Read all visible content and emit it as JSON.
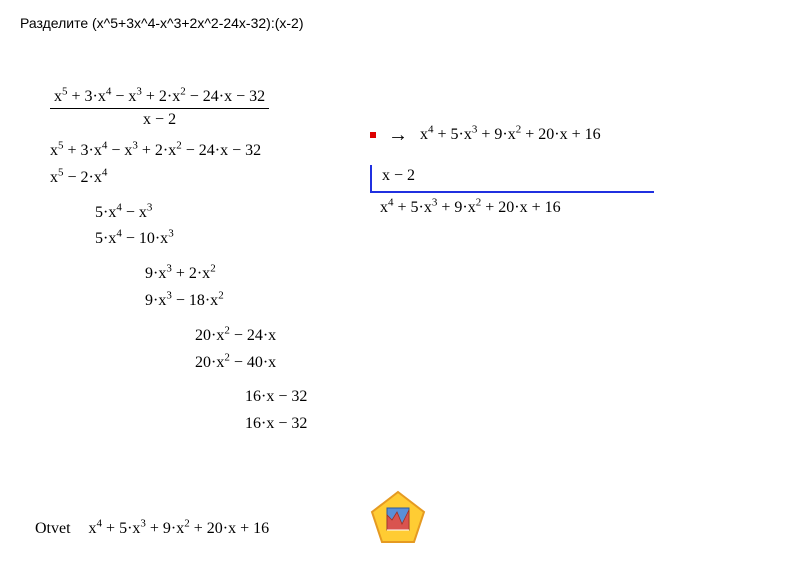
{
  "title": "Разделите (x^5+3x^4-x^3+2x^2-24x-32):(x-2)",
  "fraction_num": "x⁵ + 3·x⁴ − x³ + 2·x² − 24·x − 32",
  "fraction_den": "x − 2",
  "long_division_rows": [
    {
      "expr": "x⁵ + 3·x⁴ − x³ + 2·x² − 24·x − 32",
      "indent": 0
    },
    {
      "expr": "x⁵ − 2·x⁴",
      "indent": 0
    },
    {
      "expr": "5·x⁴ − x³",
      "indent": 45
    },
    {
      "expr": "5·x⁴ − 10·x³",
      "indent": 45
    },
    {
      "expr": "9·x³ + 2·x²",
      "indent": 95
    },
    {
      "expr": "9·x³ − 18·x²",
      "indent": 95
    },
    {
      "expr": "20·x² − 24·x",
      "indent": 145
    },
    {
      "expr": "20·x² − 40·x",
      "indent": 145
    },
    {
      "expr": "16·x − 32",
      "indent": 195
    },
    {
      "expr": "16·x − 32",
      "indent": 195
    }
  ],
  "arrow_result": "x⁴ + 5·x³ + 9·x² + 20·x + 16",
  "divisor": "x − 2",
  "quotient": "x⁴ + 5·x³ + 9·x² + 20·x + 16",
  "answer_label": "Otvet",
  "answer_expr": "x⁴ + 5·x³ + 9·x² + 20·x + 16",
  "colors": {
    "blue": "#2030e0",
    "red": "#d00000",
    "logo_yellow": "#ffcc33",
    "logo_orange": "#e59a22",
    "logo_inner": "#5a8fd6"
  }
}
